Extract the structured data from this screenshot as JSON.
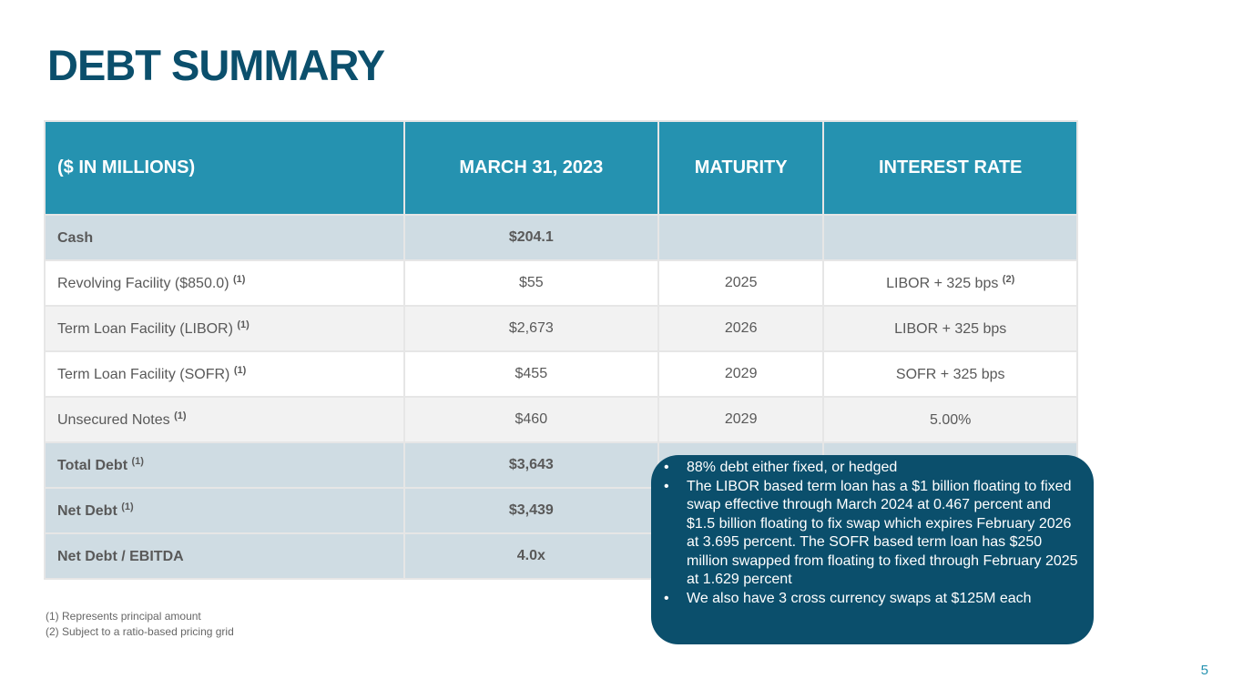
{
  "title": "DEBT SUMMARY",
  "table": {
    "headers": [
      "($ IN MILLIONS)",
      "MARCH 31, 2023",
      "MATURITY",
      "INTEREST RATE"
    ],
    "rows": [
      {
        "label": "Cash",
        "note": "",
        "value": "$204.1",
        "maturity": "",
        "rate": "",
        "rate_note": ""
      },
      {
        "label": "Revolving Facility ($850.0)",
        "note": "(1)",
        "value": "$55",
        "maturity": "2025",
        "rate": "LIBOR + 325 bps",
        "rate_note": "(2)"
      },
      {
        "label": "Term Loan Facility (LIBOR)",
        "note": "(1)",
        "value": "$2,673",
        "maturity": "2026",
        "rate": "LIBOR + 325 bps",
        "rate_note": ""
      },
      {
        "label": "Term Loan Facility (SOFR)",
        "note": "(1)",
        "value": "$455",
        "maturity": "2029",
        "rate": "SOFR + 325 bps",
        "rate_note": ""
      },
      {
        "label": "Unsecured Notes",
        "note": "(1)",
        "value": "$460",
        "maturity": "2029",
        "rate": "5.00%",
        "rate_note": ""
      },
      {
        "label": "Total Debt",
        "note": "(1)",
        "value": "$3,643",
        "maturity": "",
        "rate": "",
        "rate_note": ""
      },
      {
        "label": "Net Debt",
        "note": "(1)",
        "value": "$3,439",
        "maturity": "",
        "rate": "",
        "rate_note": ""
      },
      {
        "label": "Net Debt / EBITDA",
        "note": "",
        "value": "4.0x",
        "maturity": "",
        "rate": "",
        "rate_note": ""
      }
    ]
  },
  "footnotes": [
    "(1)  Represents principal amount",
    "(2)  Subject to a ratio-based pricing grid"
  ],
  "callout": [
    "88% debt either fixed, or hedged",
    "The LIBOR based term loan has a $1 billion floating to fixed swap effective through March 2024 at 0.467 percent and $1.5 billion floating to fix swap which expires February 2026 at 3.695 percent. The SOFR based term loan has $250 million swapped from floating to fixed through February 2025 at 1.629 percent",
    "We also have 3 cross currency swaps at $125M each"
  ],
  "page_number": "5",
  "colors": {
    "title": "#0b4f6c",
    "header": "#2592b0",
    "callout": "#0b4f6c",
    "shade": "#cfdce3"
  }
}
